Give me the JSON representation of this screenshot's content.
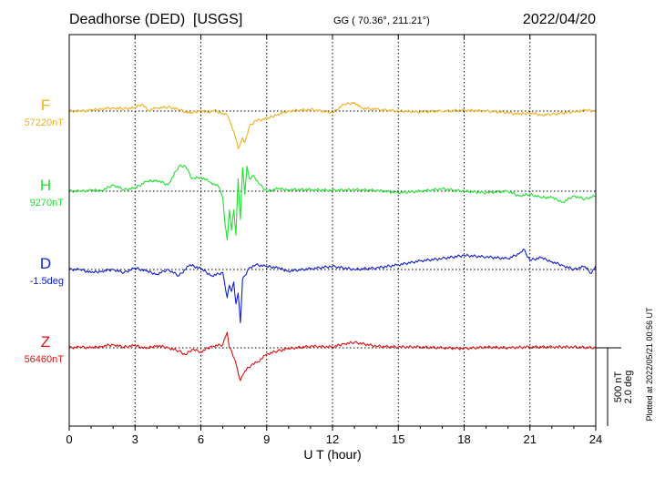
{
  "header": {
    "station": "Deadhorse (DED)  [USGS]",
    "coords": "GG ( 70.36°, 211.21°)",
    "date": "2022/04/20"
  },
  "footer": {
    "plotted": "Plotted at 2022/05/21 00:56 UT"
  },
  "chart_data": {
    "type": "line",
    "xlabel": "U T (hour)",
    "xlim": [
      0,
      24
    ],
    "xticks": [
      0,
      3,
      6,
      9,
      12,
      15,
      18,
      21,
      24
    ],
    "xtick_labels": [
      "0",
      "3",
      "6",
      "9",
      "12",
      "15",
      "18",
      "21",
      "24"
    ],
    "grid": true,
    "scale_bar": {
      "lines": [
        "500 nT",
        "2.0 deg"
      ],
      "nT": 500,
      "deg": 2.0
    },
    "series": [
      {
        "name": "F",
        "baseline_label": "57220nT",
        "baseline": 57220,
        "unit": "nT",
        "color": "#f0b020",
        "x": [
          0,
          0.5,
          1,
          1.5,
          2,
          2.5,
          3,
          3.3,
          3.6,
          4,
          4.5,
          5,
          5.5,
          6,
          6.3,
          6.6,
          7,
          7.2,
          7.4,
          7.5,
          7.6,
          7.7,
          7.8,
          7.9,
          8,
          8.2,
          8.5,
          9,
          9.5,
          10,
          11,
          12,
          12.5,
          13,
          13.3,
          14,
          15,
          16,
          17,
          18,
          19,
          20,
          20.5,
          21,
          21.5,
          22,
          23,
          23.5,
          24
        ],
        "y": [
          0,
          0,
          5,
          15,
          20,
          15,
          20,
          45,
          5,
          20,
          25,
          10,
          -15,
          5,
          -10,
          5,
          -15,
          -25,
          -90,
          -130,
          -180,
          -240,
          -210,
          -170,
          -200,
          -100,
          -60,
          -50,
          -20,
          0,
          10,
          -10,
          40,
          55,
          20,
          10,
          0,
          -5,
          0,
          5,
          0,
          -10,
          -20,
          -10,
          -25,
          -20,
          -5,
          5,
          0
        ]
      },
      {
        "name": "H",
        "baseline_label": "9270nT",
        "baseline": 9270,
        "unit": "nT",
        "color": "#20e030",
        "x": [
          0,
          0.5,
          1,
          1.5,
          2,
          2.5,
          3,
          3.5,
          4,
          4.5,
          5,
          5.3,
          5.6,
          6,
          6.4,
          6.8,
          7,
          7.1,
          7.2,
          7.3,
          7.4,
          7.5,
          7.6,
          7.7,
          7.8,
          7.9,
          8,
          8.1,
          8.2,
          8.4,
          8.7,
          9,
          9.5,
          10,
          11,
          12,
          13,
          14,
          15,
          16,
          17,
          18,
          19,
          20,
          20.5,
          21,
          21.5,
          22,
          22.5,
          23,
          23.5,
          24
        ],
        "y": [
          0,
          0,
          5,
          5,
          40,
          10,
          20,
          60,
          70,
          40,
          160,
          160,
          80,
          90,
          60,
          30,
          -40,
          -210,
          -310,
          -120,
          -250,
          -120,
          -280,
          80,
          -180,
          150,
          -20,
          160,
          80,
          100,
          40,
          0,
          15,
          10,
          10,
          5,
          10,
          5,
          -10,
          0,
          15,
          0,
          -10,
          0,
          -30,
          -20,
          -40,
          -40,
          -70,
          -30,
          -50,
          -30
        ]
      },
      {
        "name": "D",
        "baseline_label": "-1.5deg",
        "baseline": -1.5,
        "unit": "deg",
        "color": "#1020d0",
        "x": [
          0,
          0.5,
          1,
          1.5,
          2,
          2.5,
          3,
          3.5,
          4,
          4.5,
          5,
          5.5,
          6,
          6.5,
          7,
          7.2,
          7.3,
          7.4,
          7.5,
          7.6,
          7.7,
          7.8,
          7.9,
          8,
          8.2,
          8.5,
          9,
          9.5,
          10,
          11,
          12,
          13,
          14,
          15,
          16,
          17,
          18,
          19,
          20,
          20.5,
          20.7,
          21,
          21.5,
          22,
          22.5,
          23,
          23.5,
          23.8,
          24
        ],
        "y": [
          0,
          0,
          -0.08,
          -0.04,
          0,
          -0.08,
          0.04,
          -0.04,
          -0.12,
          0,
          -0.16,
          0.12,
          0.02,
          -0.16,
          -0.08,
          -0.72,
          -0.4,
          -0.56,
          -0.32,
          -0.88,
          -0.6,
          -1.36,
          -0.24,
          -0.16,
          0.04,
          0.12,
          0.08,
          0.04,
          -0.04,
          0.02,
          0.08,
          0,
          0.04,
          0.12,
          0.22,
          0.28,
          0.36,
          0.32,
          0.28,
          0.4,
          0.52,
          0.24,
          0.3,
          0.2,
          0.1,
          0,
          0.08,
          -0.1,
          0.1
        ]
      },
      {
        "name": "Z",
        "baseline_label": "56460nT",
        "baseline": 56460,
        "unit": "nT",
        "color": "#e01010",
        "x": [
          0,
          0.5,
          1,
          1.5,
          2,
          2.5,
          3,
          3.5,
          4,
          4.5,
          5,
          5.3,
          5.6,
          6,
          6.5,
          7,
          7.2,
          7.3,
          7.4,
          7.6,
          7.8,
          8,
          8.3,
          8.6,
          9,
          9.5,
          10,
          11,
          12,
          12.5,
          13,
          14,
          15,
          16,
          17,
          18,
          19,
          20,
          21,
          22,
          23,
          24
        ],
        "y": [
          0,
          5,
          0,
          10,
          20,
          5,
          15,
          -5,
          15,
          0,
          -20,
          -45,
          -10,
          -25,
          10,
          20,
          100,
          0,
          -20,
          -100,
          -210,
          -150,
          -110,
          -90,
          -40,
          -20,
          -5,
          10,
          5,
          25,
          35,
          10,
          5,
          5,
          0,
          -5,
          5,
          0,
          5,
          5,
          5,
          0
        ]
      }
    ]
  }
}
